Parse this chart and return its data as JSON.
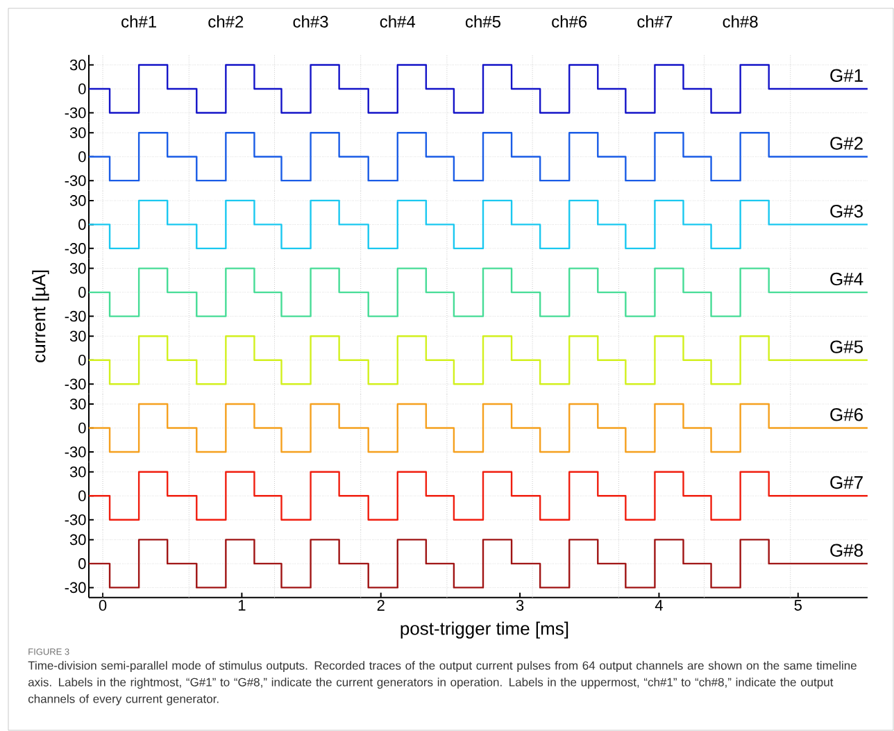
{
  "chart_data": [
    {
      "type": "line",
      "x": [
        -0.1,
        0.05,
        0.05,
        0.26,
        0.26,
        0.465,
        0.465,
        0.675,
        0.675,
        0.885,
        0.885,
        1.09,
        1.09,
        1.285,
        1.285,
        1.495,
        1.495,
        1.7,
        1.7,
        1.91,
        1.91,
        2.12,
        2.12,
        2.325,
        2.325,
        2.525,
        2.525,
        2.735,
        2.735,
        2.94,
        2.94,
        3.145,
        3.145,
        3.355,
        3.355,
        3.56,
        3.56,
        3.76,
        3.76,
        3.97,
        3.97,
        4.175,
        4.175,
        4.375,
        4.375,
        4.585,
        4.585,
        4.79,
        4.79,
        5.5
      ],
      "series": [
        {
          "name": "G#1",
          "color": "#1414c8",
          "values": [
            0,
            0,
            -30,
            -30,
            30,
            30,
            0,
            0,
            -30,
            -30,
            30,
            30,
            0,
            0,
            -30,
            -30,
            30,
            30,
            0,
            0,
            -30,
            -30,
            30,
            30,
            0,
            0,
            -30,
            -30,
            30,
            30,
            0,
            0,
            -30,
            -30,
            30,
            30,
            0,
            0,
            -30,
            -30,
            30,
            30,
            0,
            0,
            -30,
            -30,
            30,
            30,
            0,
            0
          ]
        }
      ],
      "xlim": [
        -0.1,
        5.5
      ],
      "ylim": [
        -42.5,
        42.5
      ],
      "yticks": [
        -30,
        0,
        30
      ],
      "grid": "y",
      "tick_labels": "y",
      "annotations": [
        {
          "text": "ch#1",
          "x": 0.26,
          "y": 30
        },
        {
          "text": "ch#2",
          "x": 0.885,
          "y": 30
        },
        {
          "text": "ch#3",
          "x": 1.495,
          "y": 30
        },
        {
          "text": "ch#4",
          "x": 2.12,
          "y": 30
        },
        {
          "text": "ch#5",
          "x": 2.735,
          "y": 30
        },
        {
          "text": "ch#6",
          "x": 3.355,
          "y": 30
        },
        {
          "text": "ch#7",
          "x": 3.97,
          "y": 30
        },
        {
          "text": "ch#8",
          "x": 4.585,
          "y": 30
        }
      ],
      "ref_lines": [
        {
          "axis": "x",
          "value": 0,
          "color": "#c8c8c8",
          "line_style": "dotted"
        },
        {
          "axis": "x",
          "value": 0.62,
          "color": "#c8c8c8",
          "line_style": "dotted"
        },
        {
          "axis": "x",
          "value": 1.235,
          "color": "#c8c8c8",
          "line_style": "dotted"
        },
        {
          "axis": "x",
          "value": 1.855,
          "color": "#c8c8c8",
          "line_style": "dotted"
        },
        {
          "axis": "x",
          "value": 2.475,
          "color": "#c8c8c8",
          "line_style": "dotted"
        },
        {
          "axis": "x",
          "value": 3.09,
          "color": "#c8c8c8",
          "line_style": "dotted"
        },
        {
          "axis": "x",
          "value": 3.71,
          "color": "#c8c8c8",
          "line_style": "dotted"
        },
        {
          "axis": "x",
          "value": 4.325,
          "color": "#c8c8c8",
          "line_style": "dotted"
        },
        {
          "axis": "x",
          "value": 4.945,
          "color": "#c8c8c8",
          "line_style": "dotted"
        }
      ]
    },
    {
      "type": "line",
      "x": [
        -0.1,
        0.05,
        0.05,
        0.26,
        0.26,
        0.465,
        0.465,
        0.675,
        0.675,
        0.885,
        0.885,
        1.09,
        1.09,
        1.285,
        1.285,
        1.495,
        1.495,
        1.7,
        1.7,
        1.91,
        1.91,
        2.12,
        2.12,
        2.325,
        2.325,
        2.525,
        2.525,
        2.735,
        2.735,
        2.94,
        2.94,
        3.145,
        3.145,
        3.355,
        3.355,
        3.56,
        3.56,
        3.76,
        3.76,
        3.97,
        3.97,
        4.175,
        4.175,
        4.375,
        4.375,
        4.585,
        4.585,
        4.79,
        4.79,
        5.5
      ],
      "series": [
        {
          "name": "G#2",
          "color": "#1a5ce6",
          "values": [
            0,
            0,
            -30,
            -30,
            30,
            30,
            0,
            0,
            -30,
            -30,
            30,
            30,
            0,
            0,
            -30,
            -30,
            30,
            30,
            0,
            0,
            -30,
            -30,
            30,
            30,
            0,
            0,
            -30,
            -30,
            30,
            30,
            0,
            0,
            -30,
            -30,
            30,
            30,
            0,
            0,
            -30,
            -30,
            30,
            30,
            0,
            0,
            -30,
            -30,
            30,
            30,
            0,
            0
          ]
        }
      ],
      "xlim": [
        -0.1,
        5.5
      ],
      "ylim": [
        -42.5,
        42.5
      ],
      "yticks": [
        -30,
        0,
        30
      ],
      "grid": "y",
      "tick_labels": "y",
      "ref_lines": [
        {
          "axis": "x",
          "value": 0,
          "color": "#c8c8c8",
          "line_style": "dotted"
        },
        {
          "axis": "x",
          "value": 0.62,
          "color": "#c8c8c8",
          "line_style": "dotted"
        },
        {
          "axis": "x",
          "value": 1.235,
          "color": "#c8c8c8",
          "line_style": "dotted"
        },
        {
          "axis": "x",
          "value": 1.855,
          "color": "#c8c8c8",
          "line_style": "dotted"
        },
        {
          "axis": "x",
          "value": 2.475,
          "color": "#c8c8c8",
          "line_style": "dotted"
        },
        {
          "axis": "x",
          "value": 3.09,
          "color": "#c8c8c8",
          "line_style": "dotted"
        },
        {
          "axis": "x",
          "value": 3.71,
          "color": "#c8c8c8",
          "line_style": "dotted"
        },
        {
          "axis": "x",
          "value": 4.325,
          "color": "#c8c8c8",
          "line_style": "dotted"
        },
        {
          "axis": "x",
          "value": 4.945,
          "color": "#c8c8c8",
          "line_style": "dotted"
        }
      ]
    },
    {
      "type": "line",
      "x": [
        -0.1,
        0.05,
        0.05,
        0.26,
        0.26,
        0.465,
        0.465,
        0.675,
        0.675,
        0.885,
        0.885,
        1.09,
        1.09,
        1.285,
        1.285,
        1.495,
        1.495,
        1.7,
        1.7,
        1.91,
        1.91,
        2.12,
        2.12,
        2.325,
        2.325,
        2.525,
        2.525,
        2.735,
        2.735,
        2.94,
        2.94,
        3.145,
        3.145,
        3.355,
        3.355,
        3.56,
        3.56,
        3.76,
        3.76,
        3.97,
        3.97,
        4.175,
        4.175,
        4.375,
        4.375,
        4.585,
        4.585,
        4.79,
        4.79,
        5.5
      ],
      "series": [
        {
          "name": "G#3",
          "color": "#1ac8f0",
          "values": [
            0,
            0,
            -30,
            -30,
            30,
            30,
            0,
            0,
            -30,
            -30,
            30,
            30,
            0,
            0,
            -30,
            -30,
            30,
            30,
            0,
            0,
            -30,
            -30,
            30,
            30,
            0,
            0,
            -30,
            -30,
            30,
            30,
            0,
            0,
            -30,
            -30,
            30,
            30,
            0,
            0,
            -30,
            -30,
            30,
            30,
            0,
            0,
            -30,
            -30,
            30,
            30,
            0,
            0
          ]
        }
      ],
      "xlim": [
        -0.1,
        5.5
      ],
      "ylim": [
        -42.5,
        42.5
      ],
      "yticks": [
        -30,
        0,
        30
      ],
      "grid": "y",
      "tick_labels": "y",
      "ref_lines": [
        {
          "axis": "x",
          "value": 0,
          "color": "#c8c8c8",
          "line_style": "dotted"
        },
        {
          "axis": "x",
          "value": 0.62,
          "color": "#c8c8c8",
          "line_style": "dotted"
        },
        {
          "axis": "x",
          "value": 1.235,
          "color": "#c8c8c8",
          "line_style": "dotted"
        },
        {
          "axis": "x",
          "value": 1.855,
          "color": "#c8c8c8",
          "line_style": "dotted"
        },
        {
          "axis": "x",
          "value": 2.475,
          "color": "#c8c8c8",
          "line_style": "dotted"
        },
        {
          "axis": "x",
          "value": 3.09,
          "color": "#c8c8c8",
          "line_style": "dotted"
        },
        {
          "axis": "x",
          "value": 3.71,
          "color": "#c8c8c8",
          "line_style": "dotted"
        },
        {
          "axis": "x",
          "value": 4.325,
          "color": "#c8c8c8",
          "line_style": "dotted"
        },
        {
          "axis": "x",
          "value": 4.945,
          "color": "#c8c8c8",
          "line_style": "dotted"
        }
      ]
    },
    {
      "type": "line",
      "x": [
        -0.1,
        0.05,
        0.05,
        0.26,
        0.26,
        0.465,
        0.465,
        0.675,
        0.675,
        0.885,
        0.885,
        1.09,
        1.09,
        1.285,
        1.285,
        1.495,
        1.495,
        1.7,
        1.7,
        1.91,
        1.91,
        2.12,
        2.12,
        2.325,
        2.325,
        2.525,
        2.525,
        2.735,
        2.735,
        2.94,
        2.94,
        3.145,
        3.145,
        3.355,
        3.355,
        3.56,
        3.56,
        3.76,
        3.76,
        3.97,
        3.97,
        4.175,
        4.175,
        4.375,
        4.375,
        4.585,
        4.585,
        4.79,
        4.79,
        5.5
      ],
      "series": [
        {
          "name": "G#4",
          "color": "#46dc96",
          "values": [
            0,
            0,
            -30,
            -30,
            30,
            30,
            0,
            0,
            -30,
            -30,
            30,
            30,
            0,
            0,
            -30,
            -30,
            30,
            30,
            0,
            0,
            -30,
            -30,
            30,
            30,
            0,
            0,
            -30,
            -30,
            30,
            30,
            0,
            0,
            -30,
            -30,
            30,
            30,
            0,
            0,
            -30,
            -30,
            30,
            30,
            0,
            0,
            -30,
            -30,
            30,
            30,
            0,
            0
          ]
        }
      ],
      "xlim": [
        -0.1,
        5.5
      ],
      "ylim": [
        -42.5,
        42.5
      ],
      "yticks": [
        -30,
        0,
        30
      ],
      "grid": "y",
      "tick_labels": "y",
      "ylabel": "current [µA]",
      "ref_lines": [
        {
          "axis": "x",
          "value": 0,
          "color": "#c8c8c8",
          "line_style": "dotted"
        },
        {
          "axis": "x",
          "value": 0.62,
          "color": "#c8c8c8",
          "line_style": "dotted"
        },
        {
          "axis": "x",
          "value": 1.235,
          "color": "#c8c8c8",
          "line_style": "dotted"
        },
        {
          "axis": "x",
          "value": 1.855,
          "color": "#c8c8c8",
          "line_style": "dotted"
        },
        {
          "axis": "x",
          "value": 2.475,
          "color": "#c8c8c8",
          "line_style": "dotted"
        },
        {
          "axis": "x",
          "value": 3.09,
          "color": "#c8c8c8",
          "line_style": "dotted"
        },
        {
          "axis": "x",
          "value": 3.71,
          "color": "#c8c8c8",
          "line_style": "dotted"
        },
        {
          "axis": "x",
          "value": 4.325,
          "color": "#c8c8c8",
          "line_style": "dotted"
        },
        {
          "axis": "x",
          "value": 4.945,
          "color": "#c8c8c8",
          "line_style": "dotted"
        }
      ]
    },
    {
      "type": "line",
      "x": [
        -0.1,
        0.05,
        0.05,
        0.26,
        0.26,
        0.465,
        0.465,
        0.675,
        0.675,
        0.885,
        0.885,
        1.09,
        1.09,
        1.285,
        1.285,
        1.495,
        1.495,
        1.7,
        1.7,
        1.91,
        1.91,
        2.12,
        2.12,
        2.325,
        2.325,
        2.525,
        2.525,
        2.735,
        2.735,
        2.94,
        2.94,
        3.145,
        3.145,
        3.355,
        3.355,
        3.56,
        3.56,
        3.76,
        3.76,
        3.97,
        3.97,
        4.175,
        4.175,
        4.375,
        4.375,
        4.585,
        4.585,
        4.79,
        4.79,
        5.5
      ],
      "series": [
        {
          "name": "G#5",
          "color": "#d2f01e",
          "values": [
            0,
            0,
            -30,
            -30,
            30,
            30,
            0,
            0,
            -30,
            -30,
            30,
            30,
            0,
            0,
            -30,
            -30,
            30,
            30,
            0,
            0,
            -30,
            -30,
            30,
            30,
            0,
            0,
            -30,
            -30,
            30,
            30,
            0,
            0,
            -30,
            -30,
            30,
            30,
            0,
            0,
            -30,
            -30,
            30,
            30,
            0,
            0,
            -30,
            -30,
            30,
            30,
            0,
            0
          ]
        }
      ],
      "xlim": [
        -0.1,
        5.5
      ],
      "ylim": [
        -42.5,
        42.5
      ],
      "yticks": [
        -30,
        0,
        30
      ],
      "grid": "y",
      "tick_labels": "y",
      "ref_lines": [
        {
          "axis": "x",
          "value": 0,
          "color": "#c8c8c8",
          "line_style": "dotted"
        },
        {
          "axis": "x",
          "value": 0.62,
          "color": "#c8c8c8",
          "line_style": "dotted"
        },
        {
          "axis": "x",
          "value": 1.235,
          "color": "#c8c8c8",
          "line_style": "dotted"
        },
        {
          "axis": "x",
          "value": 1.855,
          "color": "#c8c8c8",
          "line_style": "dotted"
        },
        {
          "axis": "x",
          "value": 2.475,
          "color": "#c8c8c8",
          "line_style": "dotted"
        },
        {
          "axis": "x",
          "value": 3.09,
          "color": "#c8c8c8",
          "line_style": "dotted"
        },
        {
          "axis": "x",
          "value": 3.71,
          "color": "#c8c8c8",
          "line_style": "dotted"
        },
        {
          "axis": "x",
          "value": 4.325,
          "color": "#c8c8c8",
          "line_style": "dotted"
        },
        {
          "axis": "x",
          "value": 4.945,
          "color": "#c8c8c8",
          "line_style": "dotted"
        }
      ]
    },
    {
      "type": "line",
      "x": [
        -0.1,
        0.05,
        0.05,
        0.26,
        0.26,
        0.465,
        0.465,
        0.675,
        0.675,
        0.885,
        0.885,
        1.09,
        1.09,
        1.285,
        1.285,
        1.495,
        1.495,
        1.7,
        1.7,
        1.91,
        1.91,
        2.12,
        2.12,
        2.325,
        2.325,
        2.525,
        2.525,
        2.735,
        2.735,
        2.94,
        2.94,
        3.145,
        3.145,
        3.355,
        3.355,
        3.56,
        3.56,
        3.76,
        3.76,
        3.97,
        3.97,
        4.175,
        4.175,
        4.375,
        4.375,
        4.585,
        4.585,
        4.79,
        4.79,
        5.5
      ],
      "series": [
        {
          "name": "G#6",
          "color": "#f5a01e",
          "values": [
            0,
            0,
            -30,
            -30,
            30,
            30,
            0,
            0,
            -30,
            -30,
            30,
            30,
            0,
            0,
            -30,
            -30,
            30,
            30,
            0,
            0,
            -30,
            -30,
            30,
            30,
            0,
            0,
            -30,
            -30,
            30,
            30,
            0,
            0,
            -30,
            -30,
            30,
            30,
            0,
            0,
            -30,
            -30,
            30,
            30,
            0,
            0,
            -30,
            -30,
            30,
            30,
            0,
            0
          ]
        }
      ],
      "xlim": [
        -0.1,
        5.5
      ],
      "ylim": [
        -42.5,
        42.5
      ],
      "yticks": [
        -30,
        0,
        30
      ],
      "grid": "y",
      "tick_labels": "y",
      "ref_lines": [
        {
          "axis": "x",
          "value": 0,
          "color": "#c8c8c8",
          "line_style": "dotted"
        },
        {
          "axis": "x",
          "value": 0.62,
          "color": "#c8c8c8",
          "line_style": "dotted"
        },
        {
          "axis": "x",
          "value": 1.235,
          "color": "#c8c8c8",
          "line_style": "dotted"
        },
        {
          "axis": "x",
          "value": 1.855,
          "color": "#c8c8c8",
          "line_style": "dotted"
        },
        {
          "axis": "x",
          "value": 2.475,
          "color": "#c8c8c8",
          "line_style": "dotted"
        },
        {
          "axis": "x",
          "value": 3.09,
          "color": "#c8c8c8",
          "line_style": "dotted"
        },
        {
          "axis": "x",
          "value": 3.71,
          "color": "#c8c8c8",
          "line_style": "dotted"
        },
        {
          "axis": "x",
          "value": 4.325,
          "color": "#c8c8c8",
          "line_style": "dotted"
        },
        {
          "axis": "x",
          "value": 4.945,
          "color": "#c8c8c8",
          "line_style": "dotted"
        }
      ]
    },
    {
      "type": "line",
      "x": [
        -0.1,
        0.05,
        0.05,
        0.26,
        0.26,
        0.465,
        0.465,
        0.675,
        0.675,
        0.885,
        0.885,
        1.09,
        1.09,
        1.285,
        1.285,
        1.495,
        1.495,
        1.7,
        1.7,
        1.91,
        1.91,
        2.12,
        2.12,
        2.325,
        2.325,
        2.525,
        2.525,
        2.735,
        2.735,
        2.94,
        2.94,
        3.145,
        3.145,
        3.355,
        3.355,
        3.56,
        3.56,
        3.76,
        3.76,
        3.97,
        3.97,
        4.175,
        4.175,
        4.375,
        4.375,
        4.585,
        4.585,
        4.79,
        4.79,
        5.5
      ],
      "series": [
        {
          "name": "G#7",
          "color": "#f01e0f",
          "values": [
            0,
            0,
            -30,
            -30,
            30,
            30,
            0,
            0,
            -30,
            -30,
            30,
            30,
            0,
            0,
            -30,
            -30,
            30,
            30,
            0,
            0,
            -30,
            -30,
            30,
            30,
            0,
            0,
            -30,
            -30,
            30,
            30,
            0,
            0,
            -30,
            -30,
            30,
            30,
            0,
            0,
            -30,
            -30,
            30,
            30,
            0,
            0,
            -30,
            -30,
            30,
            30,
            0,
            0
          ]
        }
      ],
      "xlim": [
        -0.1,
        5.5
      ],
      "ylim": [
        -42.5,
        42.5
      ],
      "yticks": [
        -30,
        0,
        30
      ],
      "grid": "y",
      "tick_labels": "y",
      "ref_lines": [
        {
          "axis": "x",
          "value": 0,
          "color": "#c8c8c8",
          "line_style": "dotted"
        },
        {
          "axis": "x",
          "value": 0.62,
          "color": "#c8c8c8",
          "line_style": "dotted"
        },
        {
          "axis": "x",
          "value": 1.235,
          "color": "#c8c8c8",
          "line_style": "dotted"
        },
        {
          "axis": "x",
          "value": 1.855,
          "color": "#c8c8c8",
          "line_style": "dotted"
        },
        {
          "axis": "x",
          "value": 2.475,
          "color": "#c8c8c8",
          "line_style": "dotted"
        },
        {
          "axis": "x",
          "value": 3.09,
          "color": "#c8c8c8",
          "line_style": "dotted"
        },
        {
          "axis": "x",
          "value": 3.71,
          "color": "#c8c8c8",
          "line_style": "dotted"
        },
        {
          "axis": "x",
          "value": 4.325,
          "color": "#c8c8c8",
          "line_style": "dotted"
        },
        {
          "axis": "x",
          "value": 4.945,
          "color": "#c8c8c8",
          "line_style": "dotted"
        }
      ]
    },
    {
      "type": "line",
      "x": [
        -0.1,
        0.05,
        0.05,
        0.26,
        0.26,
        0.465,
        0.465,
        0.675,
        0.675,
        0.885,
        0.885,
        1.09,
        1.09,
        1.285,
        1.285,
        1.495,
        1.495,
        1.7,
        1.7,
        1.91,
        1.91,
        2.12,
        2.12,
        2.325,
        2.325,
        2.525,
        2.525,
        2.735,
        2.735,
        2.94,
        2.94,
        3.145,
        3.145,
        3.355,
        3.355,
        3.56,
        3.56,
        3.76,
        3.76,
        3.97,
        3.97,
        4.175,
        4.175,
        4.375,
        4.375,
        4.585,
        4.585,
        4.79,
        4.79,
        5.5
      ],
      "series": [
        {
          "name": "G#8",
          "color": "#a01414",
          "values": [
            0,
            0,
            -30,
            -30,
            30,
            30,
            0,
            0,
            -30,
            -30,
            30,
            30,
            0,
            0,
            -30,
            -30,
            30,
            30,
            0,
            0,
            -30,
            -30,
            30,
            30,
            0,
            0,
            -30,
            -30,
            30,
            30,
            0,
            0,
            -30,
            -30,
            30,
            30,
            0,
            0,
            -30,
            -30,
            30,
            30,
            0,
            0,
            -30,
            -30,
            30,
            30,
            0,
            0
          ]
        }
      ],
      "xlim": [
        -0.1,
        5.5
      ],
      "ylim": [
        -42.5,
        42.5
      ],
      "yticks": [
        -30,
        0,
        30
      ],
      "xticks": [
        0,
        1,
        2,
        3,
        4,
        5
      ],
      "grid": "y",
      "xlabel": "post-trigger time [ms]",
      "ref_lines": [
        {
          "axis": "x",
          "value": 0,
          "color": "#c8c8c8",
          "line_style": "dotted"
        },
        {
          "axis": "x",
          "value": 0.62,
          "color": "#c8c8c8",
          "line_style": "dotted"
        },
        {
          "axis": "x",
          "value": 1.235,
          "color": "#c8c8c8",
          "line_style": "dotted"
        },
        {
          "axis": "x",
          "value": 1.855,
          "color": "#c8c8c8",
          "line_style": "dotted"
        },
        {
          "axis": "x",
          "value": 2.475,
          "color": "#c8c8c8",
          "line_style": "dotted"
        },
        {
          "axis": "x",
          "value": 3.09,
          "color": "#c8c8c8",
          "line_style": "dotted"
        },
        {
          "axis": "x",
          "value": 3.71,
          "color": "#c8c8c8",
          "line_style": "dotted"
        },
        {
          "axis": "x",
          "value": 4.325,
          "color": "#c8c8c8",
          "line_style": "dotted"
        },
        {
          "axis": "x",
          "value": 4.945,
          "color": "#c8c8c8",
          "line_style": "dotted"
        }
      ],
      "annotations": [
        "FIGURE 3",
        "Time-division semi-parallel mode of stimulus outputs. Recorded traces of the output current pulses from 64 output channels are shown on the same timeline axis. Labels in the rightmost, “G#1” to “G#8,” indicate the current generators in operation. Labels in the uppermost, “ch#1” to “ch#8,” indicate the output channels of every current generator."
      ]
    }
  ]
}
